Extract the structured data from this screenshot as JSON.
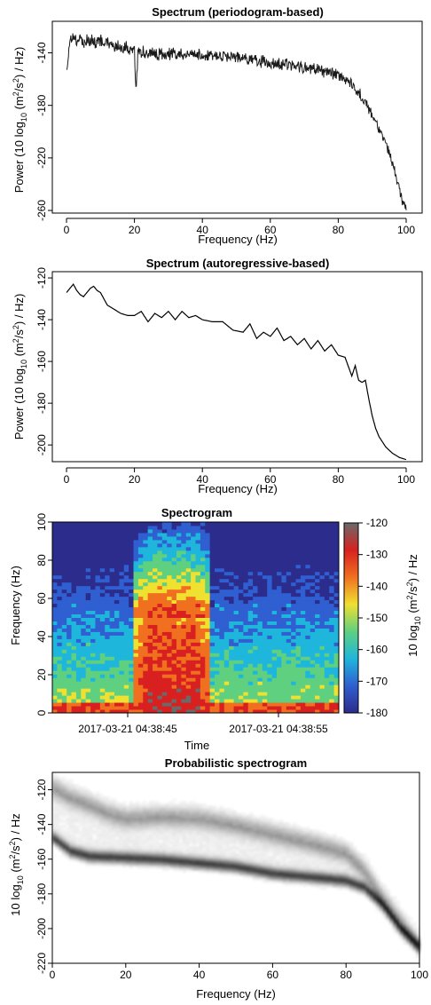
{
  "chart_data": [
    {
      "type": "line",
      "title": "Spectrum (periodogram-based)",
      "xlabel": "Frequency (Hz)",
      "ylabel": [
        "Power (10 log",
        "10",
        " (m",
        "2",
        "/s",
        "2",
        ") / Hz)"
      ],
      "xlim": [
        0,
        100
      ],
      "ylim": [
        -262,
        -116
      ],
      "xticks": [
        0,
        20,
        40,
        60,
        80,
        100
      ],
      "yticks": [
        -260,
        -220,
        -180,
        -140
      ],
      "series": [
        {
          "x": [
            0,
            1,
            2,
            3,
            4,
            5,
            6,
            8,
            10,
            12,
            14,
            16,
            18,
            20,
            20.5,
            21,
            22,
            25,
            28,
            30,
            35,
            40,
            45,
            50,
            55,
            60,
            65,
            70,
            75,
            80,
            82,
            84,
            86,
            88,
            90,
            92,
            94,
            96,
            97,
            98,
            99,
            100
          ],
          "y": [
            -154,
            -128,
            -124,
            -130,
            -126,
            -132,
            -128,
            -130,
            -129,
            -131,
            -133,
            -134,
            -135,
            -136,
            -172,
            -137,
            -138,
            -139,
            -140,
            -139,
            -140,
            -141,
            -141,
            -142,
            -144,
            -146,
            -148,
            -150,
            -152,
            -155,
            -158,
            -162,
            -168,
            -176,
            -186,
            -196,
            -208,
            -222,
            -232,
            -242,
            -252,
            -258
          ]
        }
      ]
    },
    {
      "type": "line",
      "title": "Spectrum (autoregressive-based)",
      "xlabel": "Frequency (Hz)",
      "ylabel": [
        "Power (10 log",
        "10",
        " (m",
        "2",
        "/s",
        "2",
        ") / Hz)"
      ],
      "xlim": [
        0,
        100
      ],
      "ylim": [
        -208,
        -117
      ],
      "xticks": [
        0,
        20,
        40,
        60,
        80,
        100
      ],
      "yticks": [
        -200,
        -180,
        -160,
        -140,
        -120
      ],
      "series": [
        {
          "x": [
            0,
            1,
            2,
            3,
            4,
            5,
            6,
            7,
            8,
            9,
            10,
            12,
            14,
            16,
            18,
            20,
            22,
            24,
            26,
            28,
            30,
            32,
            34,
            36,
            38,
            40,
            43,
            46,
            49,
            52,
            54,
            56,
            58,
            60,
            62,
            64,
            66,
            68,
            70,
            72,
            74,
            76,
            78,
            80,
            82,
            84,
            85,
            86,
            87,
            88,
            89,
            90,
            91,
            92,
            94,
            96,
            98,
            100
          ],
          "y": [
            -127,
            -125,
            -123,
            -126,
            -128,
            -129,
            -127,
            -125,
            -124,
            -126,
            -127,
            -133,
            -135,
            -137,
            -138,
            -138,
            -136,
            -141,
            -137,
            -139,
            -136,
            -140,
            -136,
            -139,
            -138,
            -140,
            -141,
            -141,
            -145,
            -146,
            -142,
            -149,
            -146,
            -148,
            -144,
            -150,
            -148,
            -152,
            -149,
            -154,
            -150,
            -155,
            -152,
            -157,
            -158,
            -167,
            -162,
            -169,
            -170,
            -169,
            -178,
            -186,
            -192,
            -196,
            -201,
            -204,
            -206,
            -207
          ]
        }
      ]
    },
    {
      "type": "heatmap",
      "title": "Spectrogram",
      "xlabel": "Time",
      "ylabel": "Frequency (Hz)",
      "xticklabels": [
        "2017-03-21 04:38:45",
        "2017-03-21 04:38:55"
      ],
      "xtick_times_s": [
        0,
        10
      ],
      "xlim_times_s": [
        -5,
        14
      ],
      "ylim": [
        0,
        100
      ],
      "yticks": [
        0,
        20,
        40,
        60,
        80,
        100
      ],
      "colorbar": {
        "label": [
          "10 log",
          "10",
          " (m",
          "2",
          "/s",
          "2",
          ") / Hz"
        ],
        "range": [
          -180,
          -120
        ],
        "ticks": [
          -180,
          -170,
          -160,
          -150,
          -140,
          -130,
          -120
        ],
        "colors": [
          "#2c2c8c",
          "#2f5fd0",
          "#1fb6dc",
          "#5fd080",
          "#f0e030",
          "#f07020",
          "#d82020",
          "#6a6a6a"
        ]
      }
    },
    {
      "type": "heatmap",
      "title": "Probabilistic spectrogram",
      "xlabel": "Frequency (Hz)",
      "ylabel": [
        "10 log",
        "10",
        " (m",
        "2",
        "/s",
        "2",
        ") / Hz"
      ],
      "xlim": [
        0,
        100
      ],
      "ylim": [
        -220,
        -110
      ],
      "xticks": [
        0,
        20,
        40,
        60,
        80,
        100
      ],
      "yticks": [
        -220,
        -200,
        -180,
        -160,
        -140,
        -120
      ]
    }
  ]
}
